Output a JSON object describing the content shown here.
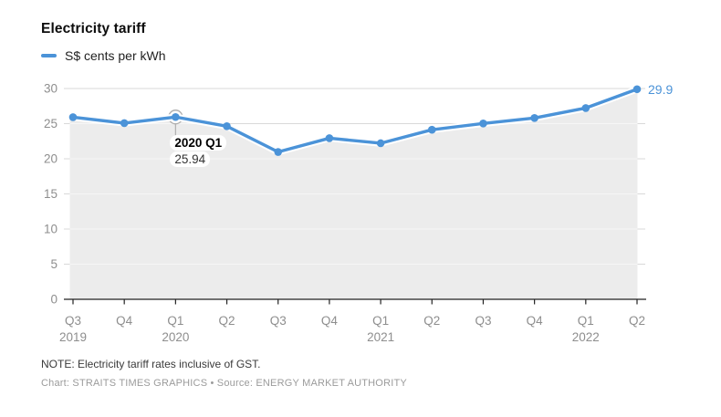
{
  "header": {
    "title": "Electricity tariff"
  },
  "legend": {
    "label": "S$ cents per kWh"
  },
  "chart_data": {
    "type": "line",
    "title": "Electricity tariff",
    "series_name": "S$ cents per kWh",
    "x": [
      "2019 Q3",
      "2019 Q4",
      "2020 Q1",
      "2020 Q2",
      "2020 Q3",
      "2020 Q4",
      "2021 Q1",
      "2021 Q2",
      "2021 Q3",
      "2021 Q4",
      "2022 Q1",
      "2022 Q2"
    ],
    "quarter_labels": [
      "Q3",
      "Q4",
      "Q1",
      "Q2",
      "Q3",
      "Q4",
      "Q1",
      "Q2",
      "Q3",
      "Q4",
      "Q1",
      "Q2"
    ],
    "year_labels": [
      {
        "index": 0,
        "label": "2019"
      },
      {
        "index": 2,
        "label": "2020"
      },
      {
        "index": 6,
        "label": "2021"
      },
      {
        "index": 10,
        "label": "2022"
      }
    ],
    "values": [
      25.92,
      25.07,
      25.94,
      24.63,
      20.97,
      22.93,
      22.21,
      24.13,
      25.02,
      25.8,
      27.22,
      29.9
    ],
    "y_ticks": [
      0,
      5,
      10,
      15,
      20,
      25,
      30
    ],
    "ylim": [
      0,
      30
    ],
    "grid": true,
    "legend_position": "top-left",
    "annotation": {
      "index": 2,
      "title": "2020 Q1",
      "value": "25.94"
    },
    "end_label": {
      "index": 11,
      "text": "29.9"
    },
    "line_color": "#4b93d8",
    "area_color": "#ececec",
    "axis_color": "#222222",
    "tick_label_color": "#8e8e8e",
    "grid_color": "#d9d9d9",
    "grid_color_on_area": "#f6f6f6",
    "marker_ring_color": "#b0b0b0"
  },
  "footer": {
    "note": "NOTE: Electricity tariff rates inclusive of GST.",
    "credit": "Chart: STRAITS TIMES GRAPHICS • Source: ENERGY MARKET AUTHORITY"
  }
}
